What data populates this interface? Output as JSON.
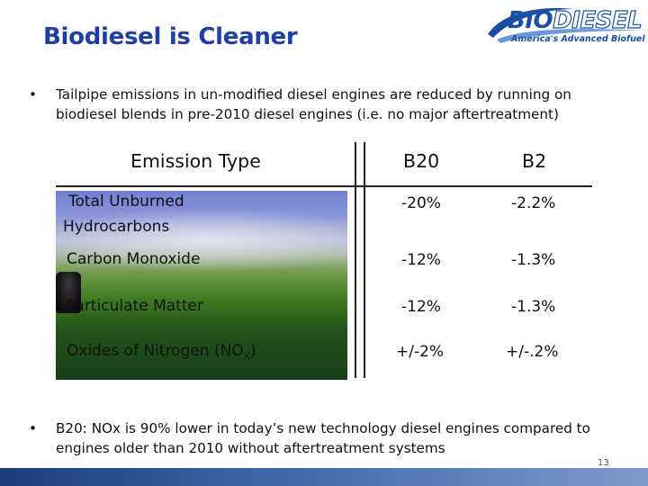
{
  "title": "Biodiesel is Cleaner",
  "logo": {
    "word_bio": "BIO",
    "word_diesel": "DIESEL",
    "tagline": "America's Advanced Biofuel"
  },
  "bullets": [
    {
      "marker": "•",
      "text": "Tailpipe emissions in un-modified diesel engines are reduced by running on biodiesel blends in pre-2010 diesel engines (i.e. no major aftertreatment)"
    },
    {
      "marker": "•",
      "line1": "B20: NOx is 90% lower in today’s new technology diesel engines compared to",
      "line2": "engines older than 2010 without aftertreatment systems"
    }
  ],
  "table": {
    "headers": [
      "Emission Type",
      "B20",
      "B2"
    ],
    "rows": [
      {
        "label_line1": "Total Unburned",
        "label_line2": "Hydrocarbons",
        "b20": "-20%",
        "b2": "-2.2%"
      },
      {
        "label": "Carbon Monoxide",
        "b20": "-12%",
        "b2": "-1.3%"
      },
      {
        "label": "Particulate Matter",
        "b20": "-12%",
        "b2": "-1.3%"
      },
      {
        "label_main": "Oxides of Nitrogen (NO",
        "label_sub": "X",
        "label_end": ")",
        "b20": "+/-2%",
        "b2": "+/-.2%"
      }
    ]
  },
  "page_number": "13",
  "colors": {
    "title": "#1f3ea8",
    "logo": "#1a4fa8",
    "footer_bar": "#2a4f8f"
  }
}
